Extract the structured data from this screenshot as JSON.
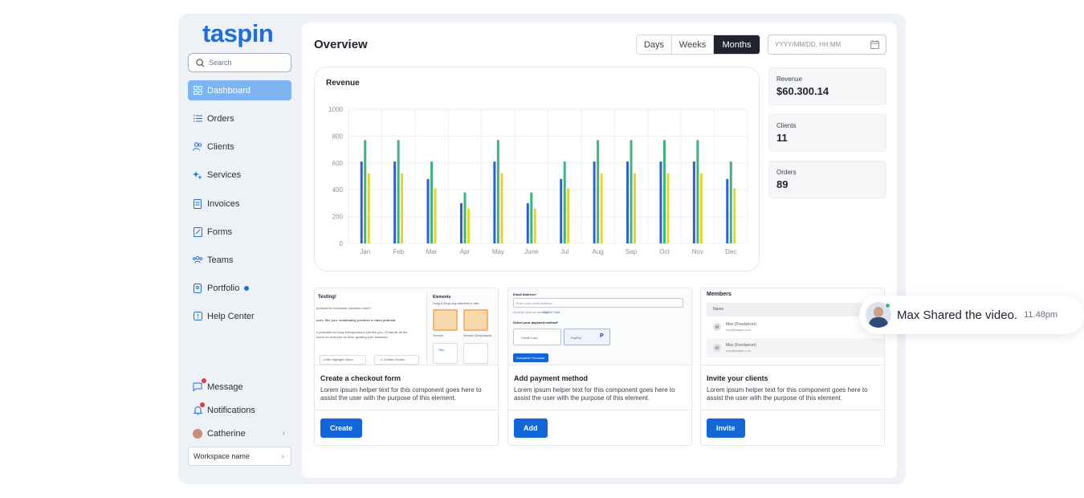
{
  "app": {
    "logo": "taspin"
  },
  "sidebar": {
    "search_placeholder": "Search",
    "items": [
      {
        "label": "Dashboard",
        "icon": "grid-icon",
        "active": true
      },
      {
        "label": "Orders",
        "icon": "list-icon"
      },
      {
        "label": "Clients",
        "icon": "users-icon"
      },
      {
        "label": "Services",
        "icon": "sparkle-icon"
      },
      {
        "label": "Invoices",
        "icon": "invoice-icon"
      },
      {
        "label": "Forms",
        "icon": "form-icon"
      },
      {
        "label": "Teams",
        "icon": "team-icon"
      },
      {
        "label": "Portfolio",
        "icon": "portfolio-icon"
      },
      {
        "label": "Help Center",
        "icon": "help-icon"
      }
    ],
    "bottom": {
      "message": "Message",
      "notifications": "Notifications",
      "user": "Catherine",
      "workspace": "Workspace name"
    }
  },
  "header": {
    "title": "Overview",
    "range_options": [
      "Days",
      "Weeks",
      "Months"
    ],
    "range_selected": "Months",
    "date_placeholder": "YYYY/MM/DD, HH:MM"
  },
  "stats": [
    {
      "label": "Revenue",
      "value": "$60.300.14"
    },
    {
      "label": "Clients",
      "value": "11"
    },
    {
      "label": "Orders",
      "value": "89"
    }
  ],
  "chart_data": {
    "type": "bar",
    "title": "Revenue",
    "categories": [
      "Jan",
      "Feb",
      "Mar",
      "Apr",
      "May",
      "June",
      "Jul",
      "Aug",
      "Sep",
      "Oct",
      "Nov",
      "Dec"
    ],
    "series": [
      {
        "values": [
          610,
          610,
          480,
          300,
          610,
          300,
          480,
          610,
          610,
          610,
          610,
          480
        ],
        "color": "#2f5fd0"
      },
      {
        "values": [
          770,
          770,
          610,
          380,
          770,
          380,
          610,
          770,
          770,
          770,
          770,
          610
        ],
        "color": "#3fb47e"
      },
      {
        "values": [
          520,
          520,
          410,
          260,
          520,
          260,
          410,
          520,
          520,
          520,
          520,
          410
        ],
        "color": "#e3d62b"
      }
    ],
    "y_ticks": [
      "0",
      "200",
      "400",
      "600",
      "800",
      "1000"
    ],
    "ylim": [
      0,
      1000
    ],
    "grid": true
  },
  "cards": [
    {
      "title": "Create a checkout form",
      "desc": "Lorem ipsum helper text for this component goes here to assist the user with the purpose of this element.",
      "button": "Create",
      "preview": {
        "heading": "Testing!",
        "elements": "Elements",
        "hint": "Drag & Drop any element to add",
        "lines": [
          "podcast for increased business reach?",
          "ours, like you, sustainably produce a video podcast.",
          "n podcasts for busy entrepreneurs just like you. I'll handle all the",
          "focus on what you do best: growing your business."
        ],
        "chip1": "1 Min Highlight Video",
        "chip2": "4 -6 Bites Shorts",
        "tile1": "Service",
        "tile2": "Service (Dropdown)",
        "tile3": "Title"
      }
    },
    {
      "title": "Add payment method",
      "desc": "Lorem ipsum helper text for this component goes here to assist the user with the purpose of this element.",
      "button": "Add",
      "preview": {
        "email_label": "Email Address*",
        "email_placeholder": "Enter your email address",
        "account_text": "Already have an account?",
        "sign_in": "Sign in here",
        "select_label": "Select your payment method*",
        "credit": "Credit Card",
        "paypal": "PayPal",
        "complete": "Complete Purchase"
      }
    },
    {
      "title": "Invite your clients",
      "desc": "Lorem ipsum helper text for this component goes here to assist the user with the purpose of this element.",
      "button": "Invite",
      "preview": {
        "heading": "Members",
        "col": "Name",
        "members": [
          {
            "initial": "M",
            "name": "Max (Freelancer)",
            "email": "max@taspin.com"
          },
          {
            "initial": "M",
            "name": "Max (Freelancer)",
            "email": "max@taspin.com"
          }
        ]
      }
    }
  ],
  "toast": {
    "message": "Max Shared the video.",
    "time": "11.48pm"
  }
}
